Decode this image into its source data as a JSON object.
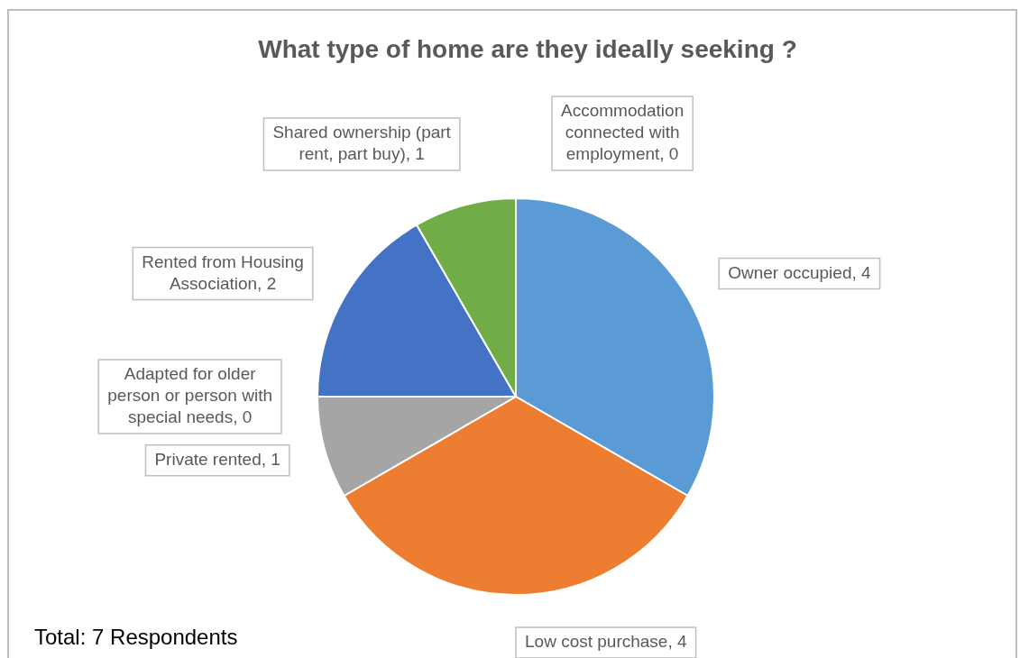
{
  "chart_data": {
    "type": "pie",
    "title": "What type of home are they ideally seeking ?",
    "categories": [
      "Owner occupied",
      "Low cost purchase",
      "Private rented",
      "Adapted for older person or person with special needs",
      "Rented from Housing Association",
      "Shared ownership (part rent, part buy)",
      "Accommodation connected with employment"
    ],
    "values": [
      4,
      4,
      1,
      0,
      2,
      1,
      0
    ],
    "colors": [
      "#5b9bd5",
      "#ed7d31",
      "#a5a5a5",
      "#ffc000",
      "#4472c4",
      "#70ad47",
      "#255e91"
    ],
    "value_labels": [
      ", 4",
      ", 4",
      ", 1",
      ", 0",
      ", 2",
      ", 1",
      ", 0"
    ],
    "legend": false,
    "annotations": [
      "Total: 7 Respondents"
    ]
  }
}
